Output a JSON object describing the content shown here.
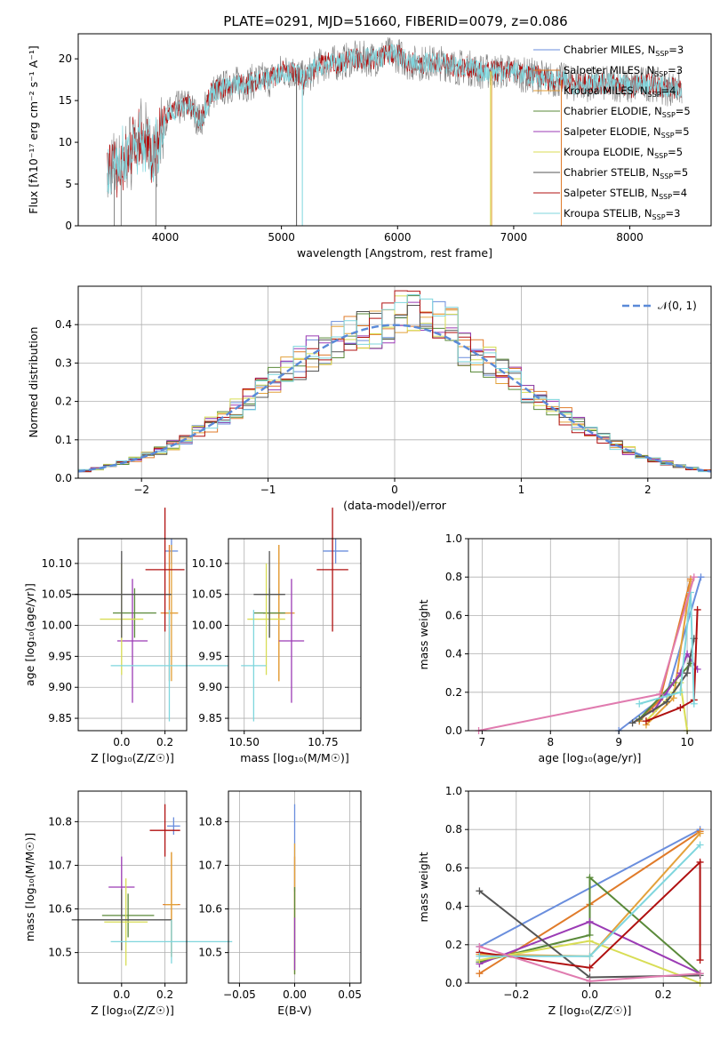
{
  "title": "PLATE=0291, MJD=51660, FIBERID=0079, z=0.086",
  "models": [
    {
      "name": "Chabrier MILES",
      "n": "3",
      "color": "#6a8edd"
    },
    {
      "name": "Salpeter MILES",
      "n": "3",
      "color": "#e07b2a"
    },
    {
      "name": "Kroupa MILES",
      "n": "4",
      "color": "#e3a13a"
    },
    {
      "name": "Chabrier ELODIE",
      "n": "5",
      "color": "#5a8a3a"
    },
    {
      "name": "Salpeter ELODIE",
      "n": "5",
      "color": "#9b3bb5"
    },
    {
      "name": "Kroupa ELODIE",
      "n": "5",
      "color": "#d8dd55"
    },
    {
      "name": "Chabrier STELIB",
      "n": "5",
      "color": "#555555"
    },
    {
      "name": "Salpeter STELIB",
      "n": "4",
      "color": "#b01010"
    },
    {
      "name": "Kroupa STELIB",
      "n": "3",
      "color": "#7fd6dd"
    }
  ],
  "chart_data": [
    {
      "id": "spectrum",
      "type": "line",
      "xlabel": "wavelength [Angstrom, rest frame]",
      "ylabel": "Flux [fλ10⁻¹⁷ erg cm⁻² s⁻¹ A⁻¹]",
      "xlim": [
        3250,
        8700
      ],
      "ylim": [
        0,
        23
      ],
      "xticks": [
        4000,
        5000,
        6000,
        7000,
        8000
      ],
      "yticks": [
        0,
        5,
        10,
        15,
        20
      ],
      "grid": false,
      "legend_position": "right",
      "data_color": "#808080",
      "model_color": "#7fd6dd",
      "data_x": [
        3500,
        3600,
        3700,
        3800,
        3900,
        4000,
        4100,
        4200,
        4300,
        4400,
        4500,
        4600,
        4700,
        4800,
        4900,
        5000,
        5100,
        5200,
        5300,
        5400,
        5500,
        5600,
        5700,
        5800,
        5900,
        6000,
        6100,
        6200,
        6300,
        6400,
        6500,
        6600,
        6700,
        6800,
        6900,
        7000,
        7100,
        7200,
        7300,
        7400,
        7500,
        7600,
        7700,
        7800,
        7900,
        8000,
        8100,
        8200,
        8300,
        8400
      ],
      "data_y": [
        6.0,
        7.5,
        9.0,
        10.5,
        8.0,
        13.0,
        14.0,
        14.5,
        12.5,
        16.0,
        16.5,
        17.0,
        17.0,
        17.5,
        17.5,
        18.5,
        18.5,
        17.5,
        19.0,
        19.5,
        19.5,
        20.0,
        20.0,
        20.0,
        20.5,
        20.5,
        19.5,
        19.5,
        19.5,
        19.5,
        19.0,
        19.0,
        18.5,
        18.5,
        18.5,
        18.5,
        18.0,
        18.0,
        17.5,
        17.5,
        17.0,
        17.0,
        17.0,
        17.0,
        17.0,
        16.5,
        17.0,
        17.0,
        16.5,
        16.5
      ]
    },
    {
      "id": "residuals",
      "type": "step",
      "xlabel": "(data-model)/error",
      "ylabel": "Normed distribution",
      "xlim": [
        -2.5,
        2.5
      ],
      "ylim": [
        0,
        0.5
      ],
      "xticks": [
        -2,
        -1,
        0,
        1,
        2
      ],
      "yticks": [
        0.0,
        0.1,
        0.2,
        0.3,
        0.4
      ],
      "grid": true,
      "legend_position": "top-right",
      "normal_label": "𝒩(0, 1)",
      "normal_color": "#5a8ad8",
      "bin_width": 0.1
    },
    {
      "id": "age_vs_Z",
      "type": "errorbar",
      "xlabel": "Z [log₁₀(Z/Z☉)]",
      "ylabel": "age  [log₁₀(age/yr)]",
      "xlim": [
        -0.2,
        0.3
      ],
      "ylim": [
        9.83,
        10.14
      ],
      "xticks": [
        0.0,
        0.2
      ],
      "yticks": [
        9.85,
        9.9,
        9.95,
        10.0,
        10.05,
        10.1
      ],
      "grid": true,
      "points": [
        {
          "x": 0.23,
          "y": 10.12,
          "xerr": 0.03,
          "yerr": 0.02
        },
        {
          "x": 0.22,
          "y": 10.02,
          "xerr": 0.04,
          "yerr": 0.11
        },
        {
          "x": 0.23,
          "y": 10.02,
          "xerr": 0.03,
          "yerr": 0.11
        },
        {
          "x": 0.06,
          "y": 10.02,
          "xerr": 0.1,
          "yerr": 0.04
        },
        {
          "x": 0.05,
          "y": 9.975,
          "xerr": 0.07,
          "yerr": 0.1
        },
        {
          "x": 0.0,
          "y": 10.01,
          "xerr": 0.1,
          "yerr": 0.09
        },
        {
          "x": 0.0,
          "y": 10.05,
          "xerr": 0.23,
          "yerr": 0.07
        },
        {
          "x": 0.2,
          "y": 10.09,
          "xerr": 0.09,
          "yerr": 0.1
        },
        {
          "x": 0.22,
          "y": 9.935,
          "xerr": 0.27,
          "yerr": 0.09
        }
      ]
    },
    {
      "id": "age_vs_mass",
      "type": "errorbar",
      "xlabel": "mass [log₁₀(M/M☉)]",
      "ylabel": "",
      "xlim": [
        10.45,
        10.87
      ],
      "ylim": [
        9.83,
        10.14
      ],
      "xticks": [
        10.5,
        10.75
      ],
      "yticks": [
        9.85,
        9.9,
        9.95,
        10.0,
        10.05,
        10.1
      ],
      "grid": true,
      "points": [
        {
          "x": 10.79,
          "y": 10.12,
          "xerr": 0.04,
          "yerr": 0.02
        },
        {
          "x": 10.61,
          "y": 10.02,
          "xerr": 0.05,
          "yerr": 0.11
        },
        {
          "x": 10.61,
          "y": 10.02,
          "xerr": 0.05,
          "yerr": 0.11
        },
        {
          "x": 10.58,
          "y": 10.02,
          "xerr": 0.05,
          "yerr": 0.04
        },
        {
          "x": 10.65,
          "y": 9.975,
          "xerr": 0.04,
          "yerr": 0.1
        },
        {
          "x": 10.57,
          "y": 10.01,
          "xerr": 0.06,
          "yerr": 0.09
        },
        {
          "x": 10.58,
          "y": 10.05,
          "xerr": 0.05,
          "yerr": 0.07
        },
        {
          "x": 10.78,
          "y": 10.09,
          "xerr": 0.05,
          "yerr": 0.1
        },
        {
          "x": 10.53,
          "y": 9.935,
          "xerr": 0.04,
          "yerr": 0.09
        }
      ]
    },
    {
      "id": "weight_vs_age",
      "type": "line",
      "xlabel": "age  [log₁₀(age/yr)]",
      "ylabel": "mass weight",
      "xlim": [
        6.8,
        10.35
      ],
      "ylim": [
        0,
        1
      ],
      "xticks": [
        7,
        8,
        9,
        10
      ],
      "yticks": [
        0.0,
        0.2,
        0.4,
        0.6,
        0.8,
        1.0
      ],
      "grid": true,
      "series": [
        {
          "x": [
            9.0,
            9.7,
            10.2
          ],
          "y": [
            0.0,
            0.19,
            0.8
          ]
        },
        {
          "x": [
            9.3,
            9.6,
            10.05
          ],
          "y": [
            0.05,
            0.16,
            0.79
          ]
        },
        {
          "x": [
            9.4,
            9.8,
            10.05
          ],
          "y": [
            0.03,
            0.17,
            0.78
          ]
        },
        {
          "x": [
            9.3,
            9.8,
            10.05
          ],
          "y": [
            0.06,
            0.25,
            0.35
          ]
        },
        {
          "x": [
            9.5,
            9.9,
            10.0,
            10.15
          ],
          "y": [
            0.1,
            0.3,
            0.4,
            0.32
          ]
        },
        {
          "x": [
            9.4,
            9.8,
            9.9,
            10.0
          ],
          "y": [
            0.05,
            0.2,
            0.25,
            0.0
          ]
        },
        {
          "x": [
            9.2,
            9.7,
            10.0,
            10.1
          ],
          "y": [
            0.04,
            0.15,
            0.3,
            0.48
          ]
        },
        {
          "x": [
            9.4,
            9.9,
            10.1,
            10.15
          ],
          "y": [
            0.05,
            0.12,
            0.16,
            0.63
          ]
        },
        {
          "x": [
            9.3,
            9.9,
            10.05,
            10.1
          ],
          "y": [
            0.14,
            0.2,
            0.72,
            0.14
          ]
        },
        {
          "x": [
            6.95,
            9.6,
            10.1
          ],
          "y": [
            0.0,
            0.19,
            0.8
          ]
        }
      ]
    },
    {
      "id": "mass_vs_Z",
      "type": "errorbar",
      "xlabel": "Z [log₁₀(Z/Z☉)]",
      "ylabel": "mass [log₁₀(M/M☉)]",
      "xlim": [
        -0.2,
        0.3
      ],
      "ylim": [
        10.43,
        10.87
      ],
      "xticks": [
        0.0,
        0.2
      ],
      "yticks": [
        10.5,
        10.6,
        10.7,
        10.8
      ],
      "grid": true,
      "points": [
        {
          "x": 0.24,
          "y": 10.79,
          "xerr": 0.03,
          "yerr": 0.02
        },
        {
          "x": 0.23,
          "y": 10.61,
          "xerr": 0.04,
          "yerr": 0.12
        },
        {
          "x": 0.23,
          "y": 10.61,
          "xerr": 0.03,
          "yerr": 0.12
        },
        {
          "x": 0.03,
          "y": 10.585,
          "xerr": 0.12,
          "yerr": 0.05
        },
        {
          "x": 0.0,
          "y": 10.65,
          "xerr": 0.06,
          "yerr": 0.07
        },
        {
          "x": 0.02,
          "y": 10.57,
          "xerr": 0.1,
          "yerr": 0.1
        },
        {
          "x": 0.0,
          "y": 10.575,
          "xerr": 0.23,
          "yerr": 0.07
        },
        {
          "x": 0.2,
          "y": 10.78,
          "xerr": 0.07,
          "yerr": 0.06
        },
        {
          "x": 0.23,
          "y": 10.525,
          "xerr": 0.28,
          "yerr": 0.05
        }
      ]
    },
    {
      "id": "mass_vs_EBV",
      "type": "errorbar",
      "xlabel": "E(B-V)",
      "ylabel": "",
      "xlim": [
        -0.06,
        0.06
      ],
      "ylim": [
        10.43,
        10.87
      ],
      "xticks": [
        -0.05,
        0.0,
        0.05
      ],
      "yticks": [
        10.5,
        10.6,
        10.7,
        10.8
      ],
      "grid": true,
      "points": [
        {
          "x": 0.0,
          "y": 10.74,
          "yerr": 0.1
        },
        {
          "x": 0.0,
          "y": 10.65,
          "yerr": 0.07
        },
        {
          "x": 0.0,
          "y": 10.6,
          "yerr": 0.15
        },
        {
          "x": 0.0,
          "y": 10.55,
          "yerr": 0.1
        },
        {
          "x": 0.0,
          "y": 10.52,
          "yerr": 0.06
        }
      ]
    },
    {
      "id": "weight_vs_Z",
      "type": "line",
      "xlabel": "Z [log₁₀(Z/Z☉)]",
      "ylabel": "mass weight",
      "xlim": [
        -0.33,
        0.33
      ],
      "ylim": [
        0,
        1
      ],
      "xticks": [
        -0.2,
        0.0,
        0.2
      ],
      "yticks": [
        0.0,
        0.2,
        0.4,
        0.6,
        0.8,
        1.0
      ],
      "grid": true,
      "series": [
        {
          "x": [
            -0.3,
            0.3
          ],
          "y": [
            0.19,
            0.8
          ]
        },
        {
          "x": [
            -0.3,
            0.0,
            0.3
          ],
          "y": [
            0.05,
            0.41,
            0.79
          ]
        },
        {
          "x": [
            -0.3,
            0.0,
            0.3
          ],
          "y": [
            0.15,
            0.14,
            0.78
          ]
        },
        {
          "x": [
            -0.3,
            0.0,
            0.0,
            0.3
          ],
          "y": [
            0.11,
            0.25,
            0.55,
            0.05
          ]
        },
        {
          "x": [
            -0.3,
            0.0,
            0.3
          ],
          "y": [
            0.1,
            0.32,
            0.05
          ]
        },
        {
          "x": [
            -0.3,
            0.0,
            0.3
          ],
          "y": [
            0.12,
            0.22,
            0.0
          ]
        },
        {
          "x": [
            -0.3,
            0.0,
            0.3
          ],
          "y": [
            0.48,
            0.03,
            0.04
          ]
        },
        {
          "x": [
            -0.3,
            0.0,
            0.3,
            0.3
          ],
          "y": [
            0.16,
            0.08,
            0.63,
            0.12
          ]
        },
        {
          "x": [
            -0.3,
            0.0,
            0.3
          ],
          "y": [
            0.14,
            0.14,
            0.72
          ]
        },
        {
          "x": [
            -0.3,
            0.0,
            0.3
          ],
          "y": [
            0.19,
            0.01,
            0.05
          ]
        }
      ]
    }
  ]
}
